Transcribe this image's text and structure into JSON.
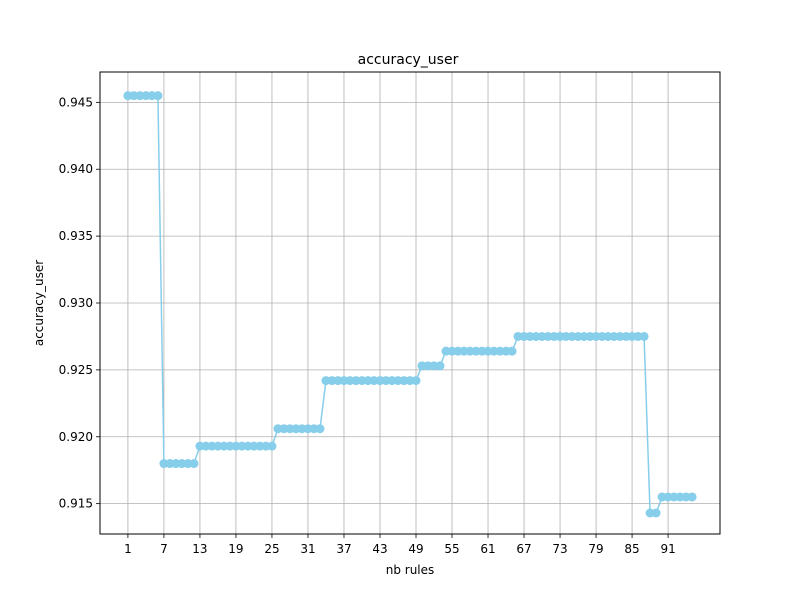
{
  "chart_data": {
    "type": "line",
    "title": "accuracy_user",
    "xlabel": "nb rules",
    "ylabel": "accuracy_user",
    "xlim": [
      -3.65,
      99.65
    ],
    "ylim": [
      0.91273,
      0.94727
    ],
    "xticks": [
      1,
      7,
      13,
      19,
      25,
      31,
      37,
      43,
      49,
      55,
      61,
      67,
      73,
      79,
      85,
      91
    ],
    "yticks": [
      0.915,
      0.92,
      0.925,
      0.93,
      0.935,
      0.94,
      0.945
    ],
    "ytick_labels": [
      "0.915",
      "0.920",
      "0.925",
      "0.930",
      "0.935",
      "0.940",
      "0.945"
    ],
    "grid": true,
    "line_color": "#87ceeb",
    "series": [
      {
        "x": [
          1,
          2,
          3,
          4,
          5,
          6,
          7,
          8,
          9,
          10,
          11,
          12,
          13,
          14,
          15,
          16,
          17,
          18,
          19,
          20,
          21,
          22,
          23,
          24,
          25,
          26,
          27,
          28,
          29,
          30,
          31,
          32,
          33,
          34,
          35,
          36,
          37,
          38,
          39,
          40,
          41,
          42,
          43,
          44,
          45,
          46,
          47,
          48,
          49,
          50,
          51,
          52,
          53,
          54,
          55,
          56,
          57,
          58,
          59,
          60,
          61,
          62,
          63,
          64,
          65,
          66,
          67,
          68,
          69,
          70,
          71,
          72,
          73,
          74,
          75,
          76,
          77,
          78,
          79,
          80,
          81,
          82,
          83,
          84,
          85,
          86,
          87,
          88,
          89,
          90,
          91,
          92,
          93,
          94,
          95
        ],
        "y": [
          0.9455,
          0.9455,
          0.9455,
          0.9455,
          0.9455,
          0.9455,
          0.918,
          0.918,
          0.918,
          0.918,
          0.918,
          0.918,
          0.9193,
          0.9193,
          0.9193,
          0.9193,
          0.9193,
          0.9193,
          0.9193,
          0.9193,
          0.9193,
          0.9193,
          0.9193,
          0.9193,
          0.9193,
          0.9206,
          0.9206,
          0.9206,
          0.9206,
          0.9206,
          0.9206,
          0.9206,
          0.9206,
          0.9242,
          0.9242,
          0.9242,
          0.9242,
          0.9242,
          0.9242,
          0.9242,
          0.9242,
          0.9242,
          0.9242,
          0.9242,
          0.9242,
          0.9242,
          0.9242,
          0.9242,
          0.9242,
          0.9253,
          0.9253,
          0.9253,
          0.9253,
          0.9264,
          0.9264,
          0.9264,
          0.9264,
          0.9264,
          0.9264,
          0.9264,
          0.9264,
          0.9264,
          0.9264,
          0.9264,
          0.9264,
          0.9275,
          0.9275,
          0.9275,
          0.9275,
          0.9275,
          0.9275,
          0.9275,
          0.9275,
          0.9275,
          0.9275,
          0.9275,
          0.9275,
          0.9275,
          0.9275,
          0.9275,
          0.9275,
          0.9275,
          0.9275,
          0.9275,
          0.9275,
          0.9275,
          0.9275,
          0.9143,
          0.9143,
          0.9155,
          0.9155,
          0.9155,
          0.9155,
          0.9155,
          0.9155
        ]
      }
    ]
  }
}
